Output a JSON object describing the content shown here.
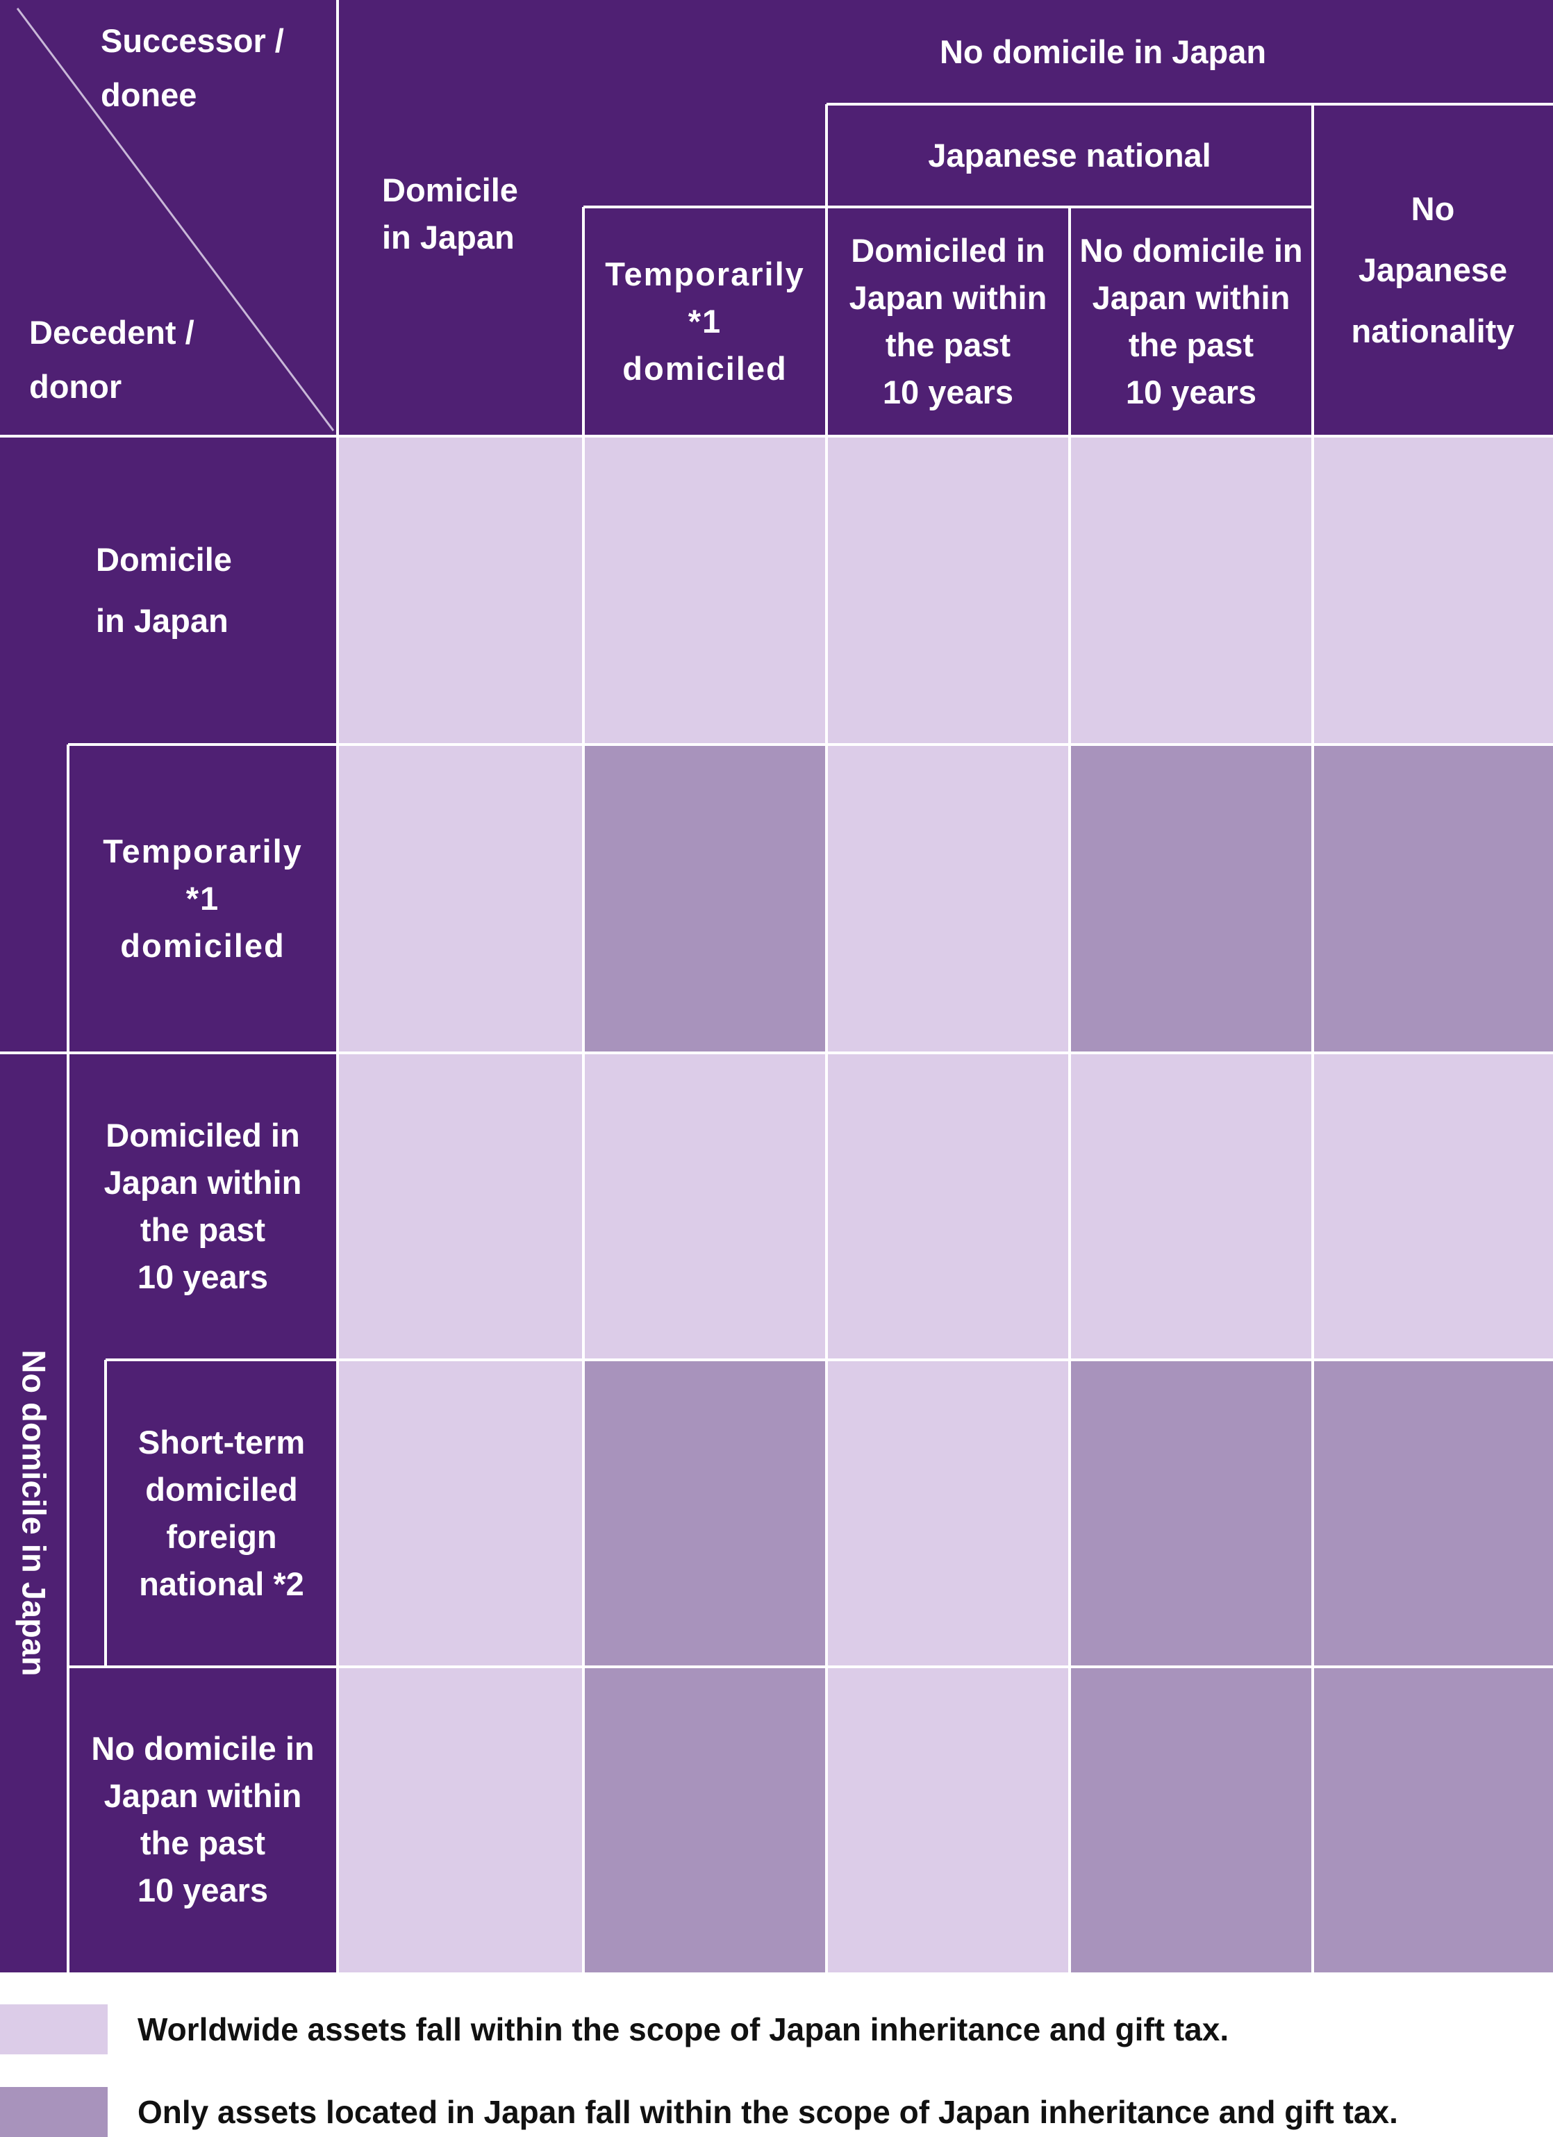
{
  "colors": {
    "header": "#4f2073",
    "worldwide": "#dccce8",
    "japan_only": "#a893bc"
  },
  "corner": {
    "successor_label": "Successor /\ndonee",
    "decedent_label": "Decedent /\ndonor"
  },
  "column_headers": {
    "domicile_in_japan": "Domicile\nin Japan",
    "no_domicile_in_japan": "No domicile in Japan",
    "japanese_national": "Japanese national",
    "temporarily_domiciled": "Temporarily\n*1\ndomiciled",
    "domiciled_past_10": "Domiciled in\nJapan within\nthe past\n10 years",
    "no_domicile_past_10": "No domicile in\nJapan within\nthe past\n10 years",
    "no_japanese_nationality": "No\nJapanese\nnationality"
  },
  "row_headers": {
    "domicile_in_japan": "Domicile\nin Japan",
    "temporarily_domiciled": "Temporarily\n*1\ndomiciled",
    "no_domicile_group": "No domicile in Japan",
    "domiciled_past_10": "Domiciled in\nJapan within\nthe past\n10 years",
    "short_term_foreign": "Short-term\ndomiciled\nforeign\nnational *2",
    "no_domicile_past_10": "No domicile in\nJapan within\nthe past\n10 years"
  },
  "grid": [
    [
      "worldwide",
      "worldwide",
      "worldwide",
      "worldwide",
      "worldwide"
    ],
    [
      "worldwide",
      "japan_only",
      "worldwide",
      "japan_only",
      "japan_only"
    ],
    [
      "worldwide",
      "worldwide",
      "worldwide",
      "worldwide",
      "worldwide"
    ],
    [
      "worldwide",
      "japan_only",
      "worldwide",
      "japan_only",
      "japan_only"
    ],
    [
      "worldwide",
      "japan_only",
      "worldwide",
      "japan_only",
      "japan_only"
    ]
  ],
  "legend": {
    "worldwide": "Worldwide assets fall within the scope of Japan inheritance and gift tax.",
    "japan_only": "Only assets located in Japan fall within the scope of Japan inheritance and gift tax."
  }
}
